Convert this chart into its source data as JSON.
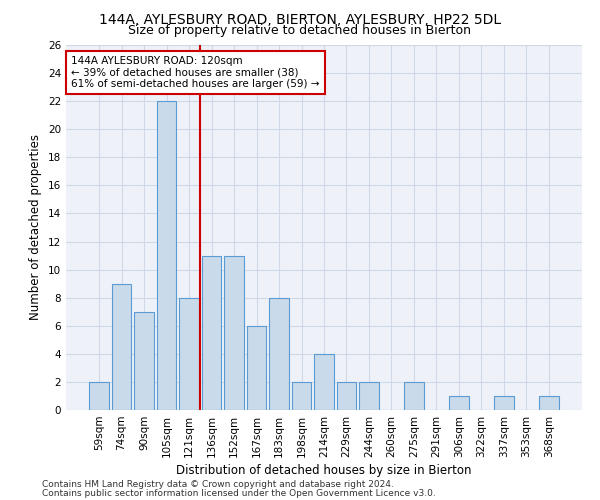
{
  "title1": "144A, AYLESBURY ROAD, BIERTON, AYLESBURY, HP22 5DL",
  "title2": "Size of property relative to detached houses in Bierton",
  "xlabel": "Distribution of detached houses by size in Bierton",
  "ylabel": "Number of detached properties",
  "categories": [
    "59sqm",
    "74sqm",
    "90sqm",
    "105sqm",
    "121sqm",
    "136sqm",
    "152sqm",
    "167sqm",
    "183sqm",
    "198sqm",
    "214sqm",
    "229sqm",
    "244sqm",
    "260sqm",
    "275sqm",
    "291sqm",
    "306sqm",
    "322sqm",
    "337sqm",
    "353sqm",
    "368sqm"
  ],
  "values": [
    2,
    9,
    7,
    22,
    8,
    11,
    11,
    6,
    8,
    2,
    4,
    2,
    2,
    0,
    2,
    0,
    1,
    0,
    1,
    0,
    1
  ],
  "bar_color": "#c9daea",
  "bar_edge_color": "#5b9bd5",
  "bar_edge_width": 0.8,
  "red_line_x": 4.5,
  "annotation_line1": "144A AYLESBURY ROAD: 120sqm",
  "annotation_line2": "← 39% of detached houses are smaller (38)",
  "annotation_line3": "61% of semi-detached houses are larger (59) →",
  "annotation_box_color": "#ffffff",
  "annotation_box_edge": "#cc0000",
  "ylim": [
    0,
    26
  ],
  "yticks": [
    0,
    2,
    4,
    6,
    8,
    10,
    12,
    14,
    16,
    18,
    20,
    22,
    24,
    26
  ],
  "grid_color": "#d0d8e8",
  "background_color": "#eef2f8",
  "footer1": "Contains HM Land Registry data © Crown copyright and database right 2024.",
  "footer2": "Contains public sector information licensed under the Open Government Licence v3.0.",
  "title1_fontsize": 10,
  "title2_fontsize": 9,
  "xlabel_fontsize": 8.5,
  "ylabel_fontsize": 8.5,
  "tick_fontsize": 7.5,
  "annotation_fontsize": 7.5,
  "footer_fontsize": 6.5
}
